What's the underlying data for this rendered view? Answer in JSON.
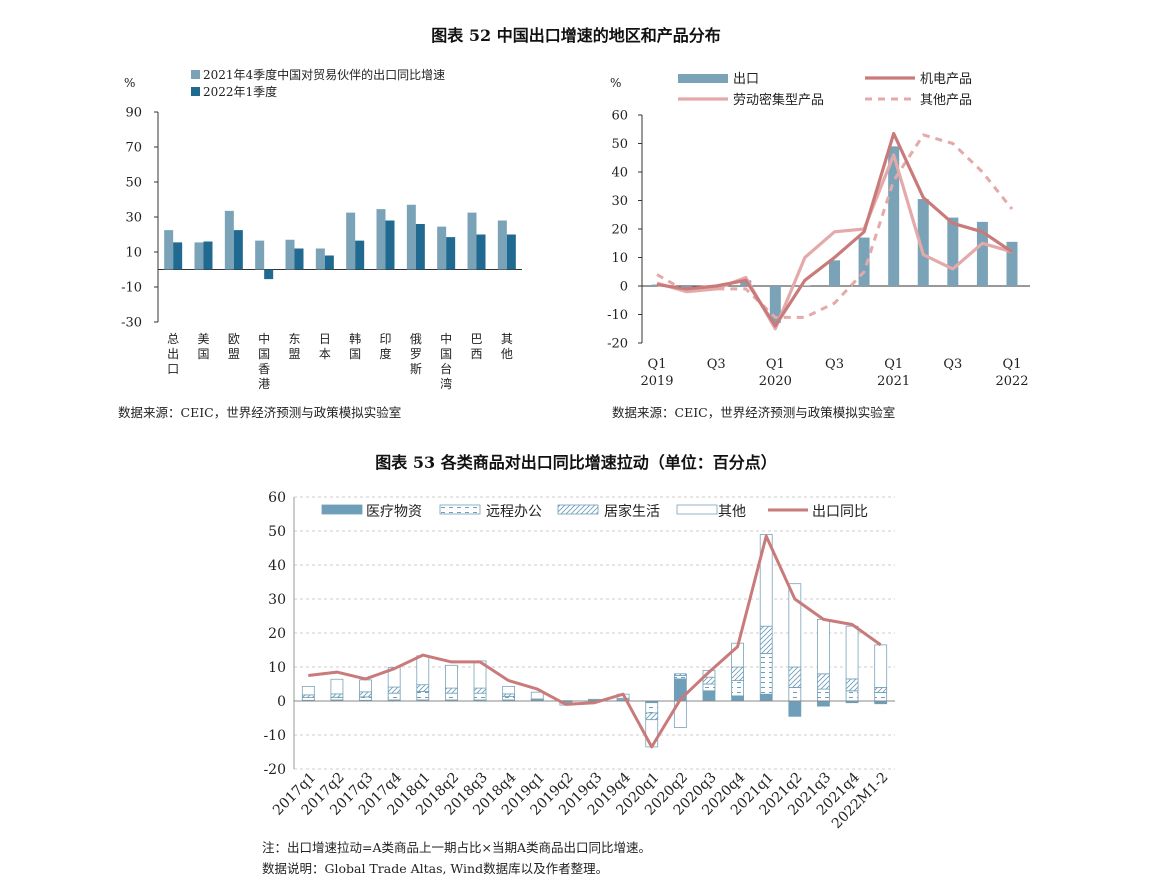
{
  "figure52": {
    "title": "图表 52    中国出口增速的地区和产品分布",
    "left_source": "数据来源：CEIC，世界经济预测与政策模拟实验室",
    "right_source": "数据来源：CEIC，世界经济预测与政策模拟实验室"
  },
  "figure53": {
    "title": "图表 53    各类商品对出口同比增速拉动（单位：百分点）",
    "note": "注：出口增速拉动=A类商品上一期占比×当期A类商品出口同比增速。",
    "source": "数据说明：Global Trade Altas, Wind数据库以及作者整理。"
  },
  "colors": {
    "light_bar": "#7aa3b8",
    "dark_bar": "#206a91",
    "medical": "#6f9fb8",
    "line_main": "#c97a7a",
    "line_light": "#e4a9a9",
    "grid": "#cccccc"
  },
  "chart_data": [
    {
      "id": "left",
      "type": "bar",
      "ylabel": "%",
      "ylim": [
        -30,
        90
      ],
      "yticks": [
        90,
        70,
        50,
        30,
        10,
        -10,
        -30
      ],
      "categories": [
        "总出口",
        "美国",
        "欧盟",
        "中国香港",
        "东盟",
        "日本",
        "韩国",
        "印度",
        "俄罗斯",
        "中国台湾",
        "巴西",
        "其他"
      ],
      "series": [
        {
          "name": "2021年4季度中国对贸易伙伴的出口同比增速",
          "values": [
            22.5,
            15.5,
            33.5,
            16.5,
            17,
            12,
            32.5,
            34.5,
            37,
            24.5,
            32.5,
            28
          ]
        },
        {
          "name": "2022年1季度",
          "values": [
            15.5,
            16,
            22.5,
            -5.5,
            12,
            8,
            16.5,
            28,
            26,
            18.5,
            20,
            20
          ]
        }
      ],
      "legend": "top-left",
      "grid": false
    },
    {
      "id": "right",
      "type": "line",
      "ylabel": "%",
      "ylim": [
        -20,
        60
      ],
      "yticks": [
        60,
        50,
        40,
        30,
        20,
        10,
        0,
        -10,
        -20
      ],
      "x_tick_labels": [
        {
          "label": "Q1",
          "sub": "2019",
          "idx": 0
        },
        {
          "label": "Q3",
          "sub": "",
          "idx": 2
        },
        {
          "label": "Q1",
          "sub": "2020",
          "idx": 4
        },
        {
          "label": "Q3",
          "sub": "",
          "idx": 6
        },
        {
          "label": "Q1",
          "sub": "2021",
          "idx": 8
        },
        {
          "label": "Q3",
          "sub": "",
          "idx": 10
        },
        {
          "label": "Q1",
          "sub": "2022",
          "idx": 12
        }
      ],
      "x": [
        "2019Q1",
        "2019Q2",
        "2019Q3",
        "2019Q4",
        "2020Q1",
        "2020Q2",
        "2020Q3",
        "2020Q4",
        "2021Q1",
        "2021Q2",
        "2021Q3",
        "2021Q4",
        "2022Q1"
      ],
      "bars": {
        "name": "出口",
        "values": [
          0.5,
          -1,
          0,
          2,
          -13,
          0.2,
          9,
          17,
          49,
          30.5,
          24,
          22.5,
          15.5
        ]
      },
      "series": [
        {
          "name": "机电产品",
          "values": [
            0.5,
            -1,
            0,
            2,
            -14,
            2,
            10,
            19,
            53.5,
            31,
            22,
            19,
            12
          ]
        },
        {
          "name": "劳动密集型产品",
          "values": [
            1,
            -2,
            -1,
            3,
            -15,
            10,
            19,
            20,
            46,
            11,
            6,
            15,
            12
          ]
        },
        {
          "name": "其他产品",
          "values": [
            4,
            -2,
            -1,
            -1,
            -11,
            -11,
            -6,
            5,
            37,
            53,
            50,
            40,
            27
          ]
        }
      ],
      "legend": "top",
      "grid": false
    },
    {
      "id": "bottom",
      "type": "bar",
      "ylim": [
        -20,
        60
      ],
      "yticks": [
        60,
        50,
        40,
        30,
        20,
        10,
        0,
        -10,
        -20
      ],
      "categories": [
        "2017q1",
        "2017q2",
        "2017q3",
        "2017q4",
        "2018q1",
        "2018q2",
        "2018q3",
        "2018q4",
        "2019q1",
        "2019q2",
        "2019q3",
        "2019q4",
        "2020q1",
        "2020q2",
        "2020q3",
        "2020q4",
        "2021q1",
        "2021q2",
        "2021q3",
        "2021q4",
        "2022M1-2"
      ],
      "series": [
        {
          "name": "医疗物资",
          "values": [
            0.2,
            0.3,
            0.2,
            0.3,
            0.3,
            0.3,
            0.3,
            0.3,
            0.2,
            0.1,
            0.1,
            0.2,
            -0.5,
            6.5,
            3.0,
            1.5,
            2.0,
            -4.5,
            -1.5,
            -0.5,
            -0.8
          ]
        },
        {
          "name": "远程办公",
          "values": [
            0.8,
            0.8,
            1.0,
            2.0,
            2.5,
            2.0,
            2.0,
            1.0,
            0.2,
            -0.3,
            0.1,
            0.3,
            -3.0,
            1.0,
            2.0,
            4.5,
            12.0,
            4.0,
            3.5,
            3.0,
            2.5
          ]
        },
        {
          "name": "居家生活",
          "values": [
            0.8,
            1.0,
            1.5,
            1.8,
            2.0,
            1.5,
            1.5,
            0.8,
            0.2,
            -0.3,
            0.2,
            0.3,
            -2.0,
            0.5,
            2.0,
            4.0,
            8.0,
            6.0,
            4.5,
            3.5,
            1.5
          ]
        },
        {
          "name": "其他",
          "values": [
            2.5,
            4.3,
            3.5,
            5.8,
            8.5,
            6.7,
            8.0,
            2.2,
            2.0,
            -0.6,
            0.1,
            1.2,
            -8.0,
            -7.8,
            2.0,
            7.0,
            27.0,
            24.5,
            16.0,
            15.5,
            12.5
          ]
        }
      ],
      "line": {
        "name": "出口同比",
        "values": [
          7.5,
          8.5,
          6.5,
          9.5,
          13.5,
          11.5,
          11.5,
          6.0,
          3.5,
          -1.0,
          -0.5,
          2.0,
          -13.5,
          0.5,
          8.5,
          16.0,
          48.5,
          30.0,
          24.0,
          22.5,
          16.5
        ]
      },
      "legend": "top",
      "grid": true
    }
  ]
}
